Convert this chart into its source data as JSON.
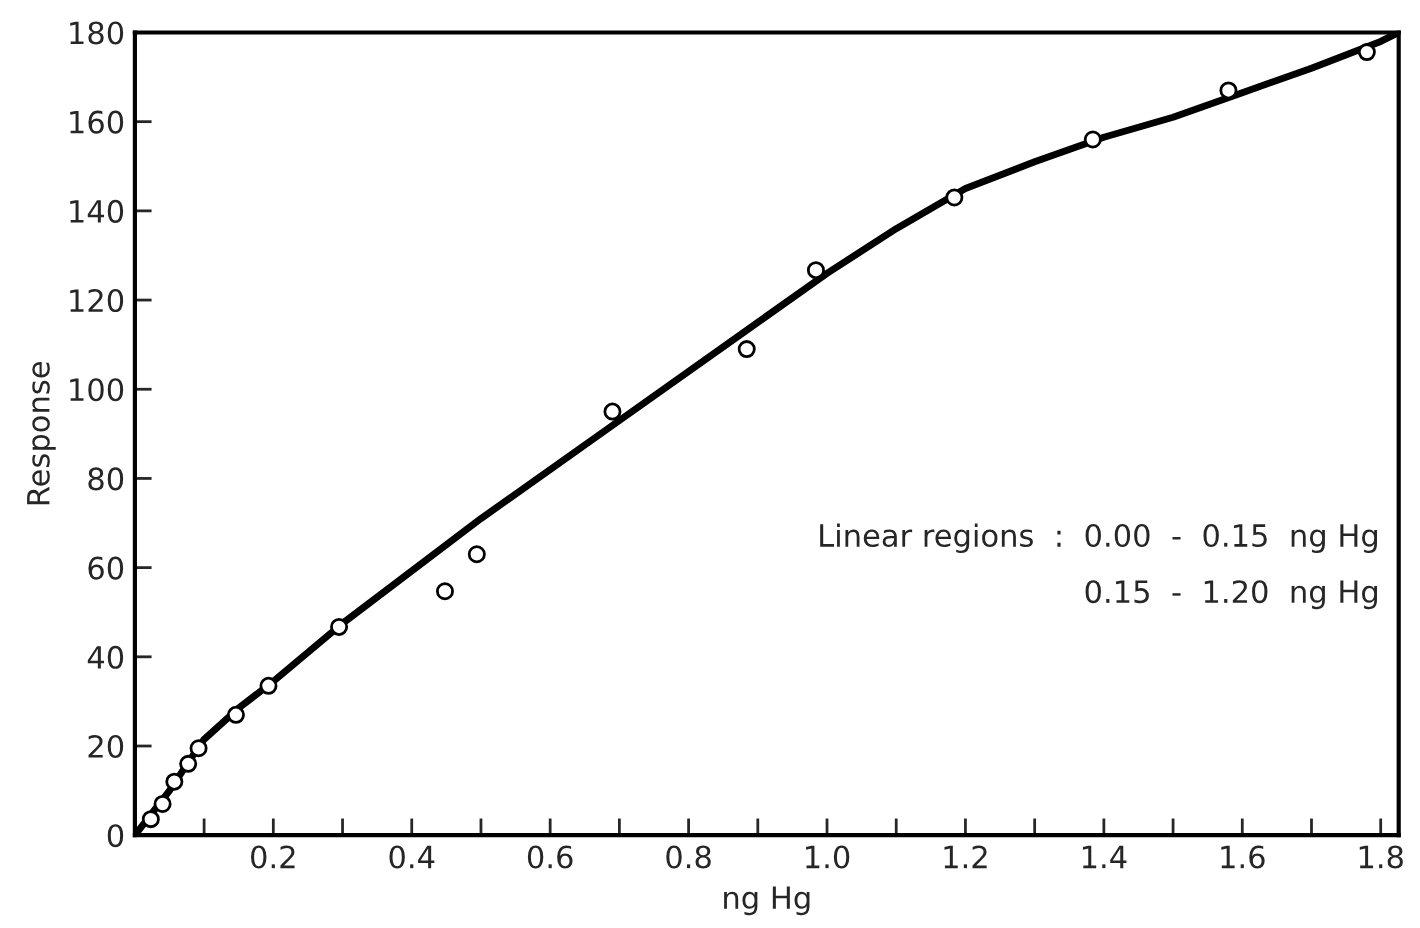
{
  "chart_data": {
    "type": "scatter",
    "xlabel": "ng Hg",
    "ylabel": "Response",
    "xlim": [
      0,
      1.826
    ],
    "ylim": [
      0,
      180
    ],
    "xticks": [
      {
        "value": 0.1,
        "label": null
      },
      0.2,
      {
        "value": 0.3,
        "label": null
      },
      0.4,
      {
        "value": 0.5,
        "label": null
      },
      0.6,
      {
        "value": 0.7,
        "label": null
      },
      0.8,
      {
        "value": 0.9,
        "label": null
      },
      {
        "value": 1.0,
        "label": "1.0"
      },
      {
        "value": 1.1,
        "label": null
      },
      1.2,
      {
        "value": 1.3,
        "label": null
      },
      1.4,
      {
        "value": 1.5,
        "label": null
      },
      1.6,
      {
        "value": 1.7,
        "label": null
      },
      1.8
    ],
    "yticks": [
      0,
      20,
      40,
      60,
      80,
      100,
      120,
      140,
      160,
      180
    ],
    "grid": false,
    "legend": false,
    "series": [
      {
        "color": "#000000",
        "marker": "circle",
        "x": [
          0.023,
          0.04,
          0.057,
          0.077,
          0.092,
          0.146,
          0.193,
          0.295,
          0.448,
          0.494,
          0.69,
          0.884,
          0.984,
          1.184,
          1.384,
          1.58,
          1.78
        ],
        "values": [
          3.6,
          7,
          12,
          16,
          19.5,
          27,
          33.5,
          46.7,
          54.7,
          63,
          95,
          109,
          126.7,
          143,
          156,
          167,
          175.6
        ]
      },
      {
        "type": "line",
        "color": "#000000",
        "marker": "none",
        "line_style": "solid",
        "x": [
          0,
          0.02,
          0.05,
          0.08,
          0.1,
          0.15,
          0.2,
          0.3,
          0.5,
          0.7,
          0.9,
          1.0,
          1.1,
          1.2,
          1.3,
          1.4,
          1.5,
          1.6,
          1.7,
          1.8,
          1.826
        ],
        "values": [
          0,
          4,
          10,
          17,
          21.5,
          28.5,
          34.5,
          47.5,
          71,
          93,
          115,
          126,
          136,
          145,
          151,
          156.5,
          161,
          166.5,
          172,
          178,
          180
        ]
      }
    ],
    "annotations": [
      "Linear regions  :  0.00  -  0.15  ng Hg",
      "0.15  -  1.20  ng Hg"
    ]
  }
}
